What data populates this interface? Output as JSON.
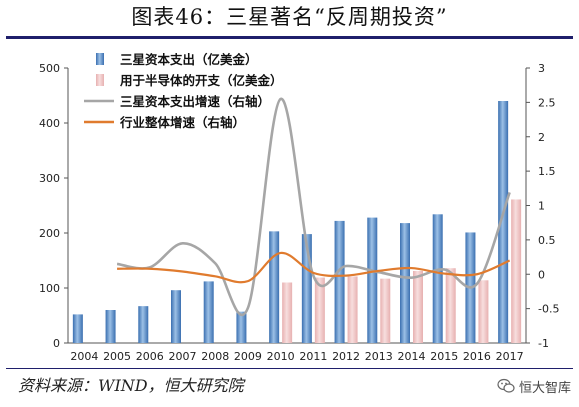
{
  "page": {
    "title": "图表46：三星著名“反周期投资”",
    "source": "资料来源：WIND，恒大研究院",
    "watermark": "恒大智库"
  },
  "colors": {
    "capex": "#3a6fb0",
    "semi": "#e7b0b0",
    "growth_samsung": "#a6a6a6",
    "growth_industry": "#e07b2e",
    "rule": "#1f1f6b"
  },
  "chart_data": {
    "type": "bar",
    "categories": [
      "2004",
      "2005",
      "2006",
      "2007",
      "2008",
      "2009",
      "2010",
      "2011",
      "2012",
      "2013",
      "2014",
      "2015",
      "2016",
      "2017"
    ],
    "series": [
      {
        "name": "三星资本支出（亿美金）",
        "type": "bar",
        "axis": "left",
        "values": [
          52,
          60,
          67,
          96,
          112,
          57,
          203,
          198,
          222,
          228,
          218,
          234,
          201,
          440
        ]
      },
      {
        "name": "用于半导体的开支（亿美金）",
        "type": "bar",
        "axis": "left",
        "values": [
          null,
          null,
          null,
          null,
          null,
          null,
          110,
          119,
          121,
          117,
          131,
          136,
          114,
          261
        ]
      },
      {
        "name": "三星资本支出增速（右轴）",
        "type": "line",
        "axis": "right",
        "values": [
          null,
          0.15,
          0.1,
          0.45,
          0.16,
          -0.49,
          2.55,
          -0.02,
          0.12,
          0.03,
          -0.05,
          0.07,
          -0.14,
          1.19
        ]
      },
      {
        "name": "行业整体增速（右轴）",
        "type": "line",
        "axis": "right",
        "values": [
          null,
          0.08,
          0.08,
          0.04,
          -0.03,
          -0.1,
          0.31,
          0.02,
          -0.02,
          0.05,
          0.09,
          0.01,
          0.0,
          0.2
        ]
      }
    ],
    "y_left": {
      "min": 0,
      "max": 500,
      "ticks": [
        "0",
        "100",
        "200",
        "300",
        "400",
        "500"
      ]
    },
    "y_right": {
      "min": -1,
      "max": 3,
      "ticks": [
        "-1",
        "-0.5",
        "0",
        "0.5",
        "1",
        "1.5",
        "2",
        "2.5",
        "3"
      ]
    },
    "grid": false,
    "legend_position": "top-left"
  }
}
